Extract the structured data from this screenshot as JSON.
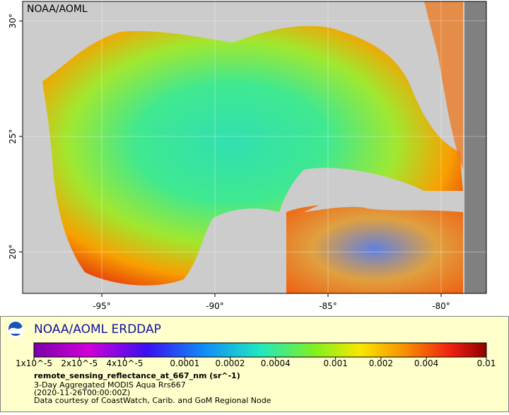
{
  "map": {
    "source_label": "NOAA/AOML",
    "xlim": [
      -98.5,
      -78
    ],
    "ylim": [
      18.2,
      30.85
    ],
    "xticks": [
      {
        "value": -95,
        "label": "-95°"
      },
      {
        "value": -90,
        "label": "-90°"
      },
      {
        "value": -85,
        "label": "-85°"
      },
      {
        "value": -80,
        "label": "-80°"
      }
    ],
    "yticks": [
      {
        "value": 30,
        "label": "30°"
      },
      {
        "value": 25,
        "label": "25°"
      },
      {
        "value": 20,
        "label": "20°"
      }
    ]
  },
  "legend": {
    "title": "NOAA/AOML ERDDAP",
    "scale": "log",
    "clim": [
      1e-05,
      0.01
    ],
    "ticks": [
      {
        "value": 1e-05,
        "label": "1x10^-5"
      },
      {
        "value": 2e-05,
        "label": "2x10^-5"
      },
      {
        "value": 4e-05,
        "label": "4x10^-5"
      },
      0.0001,
      0.0002,
      0.0004,
      0.001,
      0.002,
      0.004,
      0.01
    ],
    "variable": "remote_sensing_reflectance_at_667_nm (sr^-1)",
    "lines": [
      "3-Day Aggregated MODIS Aqua Rrs667",
      "(2020-11-26T00:00:00Z)",
      "Data courtesy of CoastWatch, Carib. and GoM Regional Node"
    ]
  }
}
